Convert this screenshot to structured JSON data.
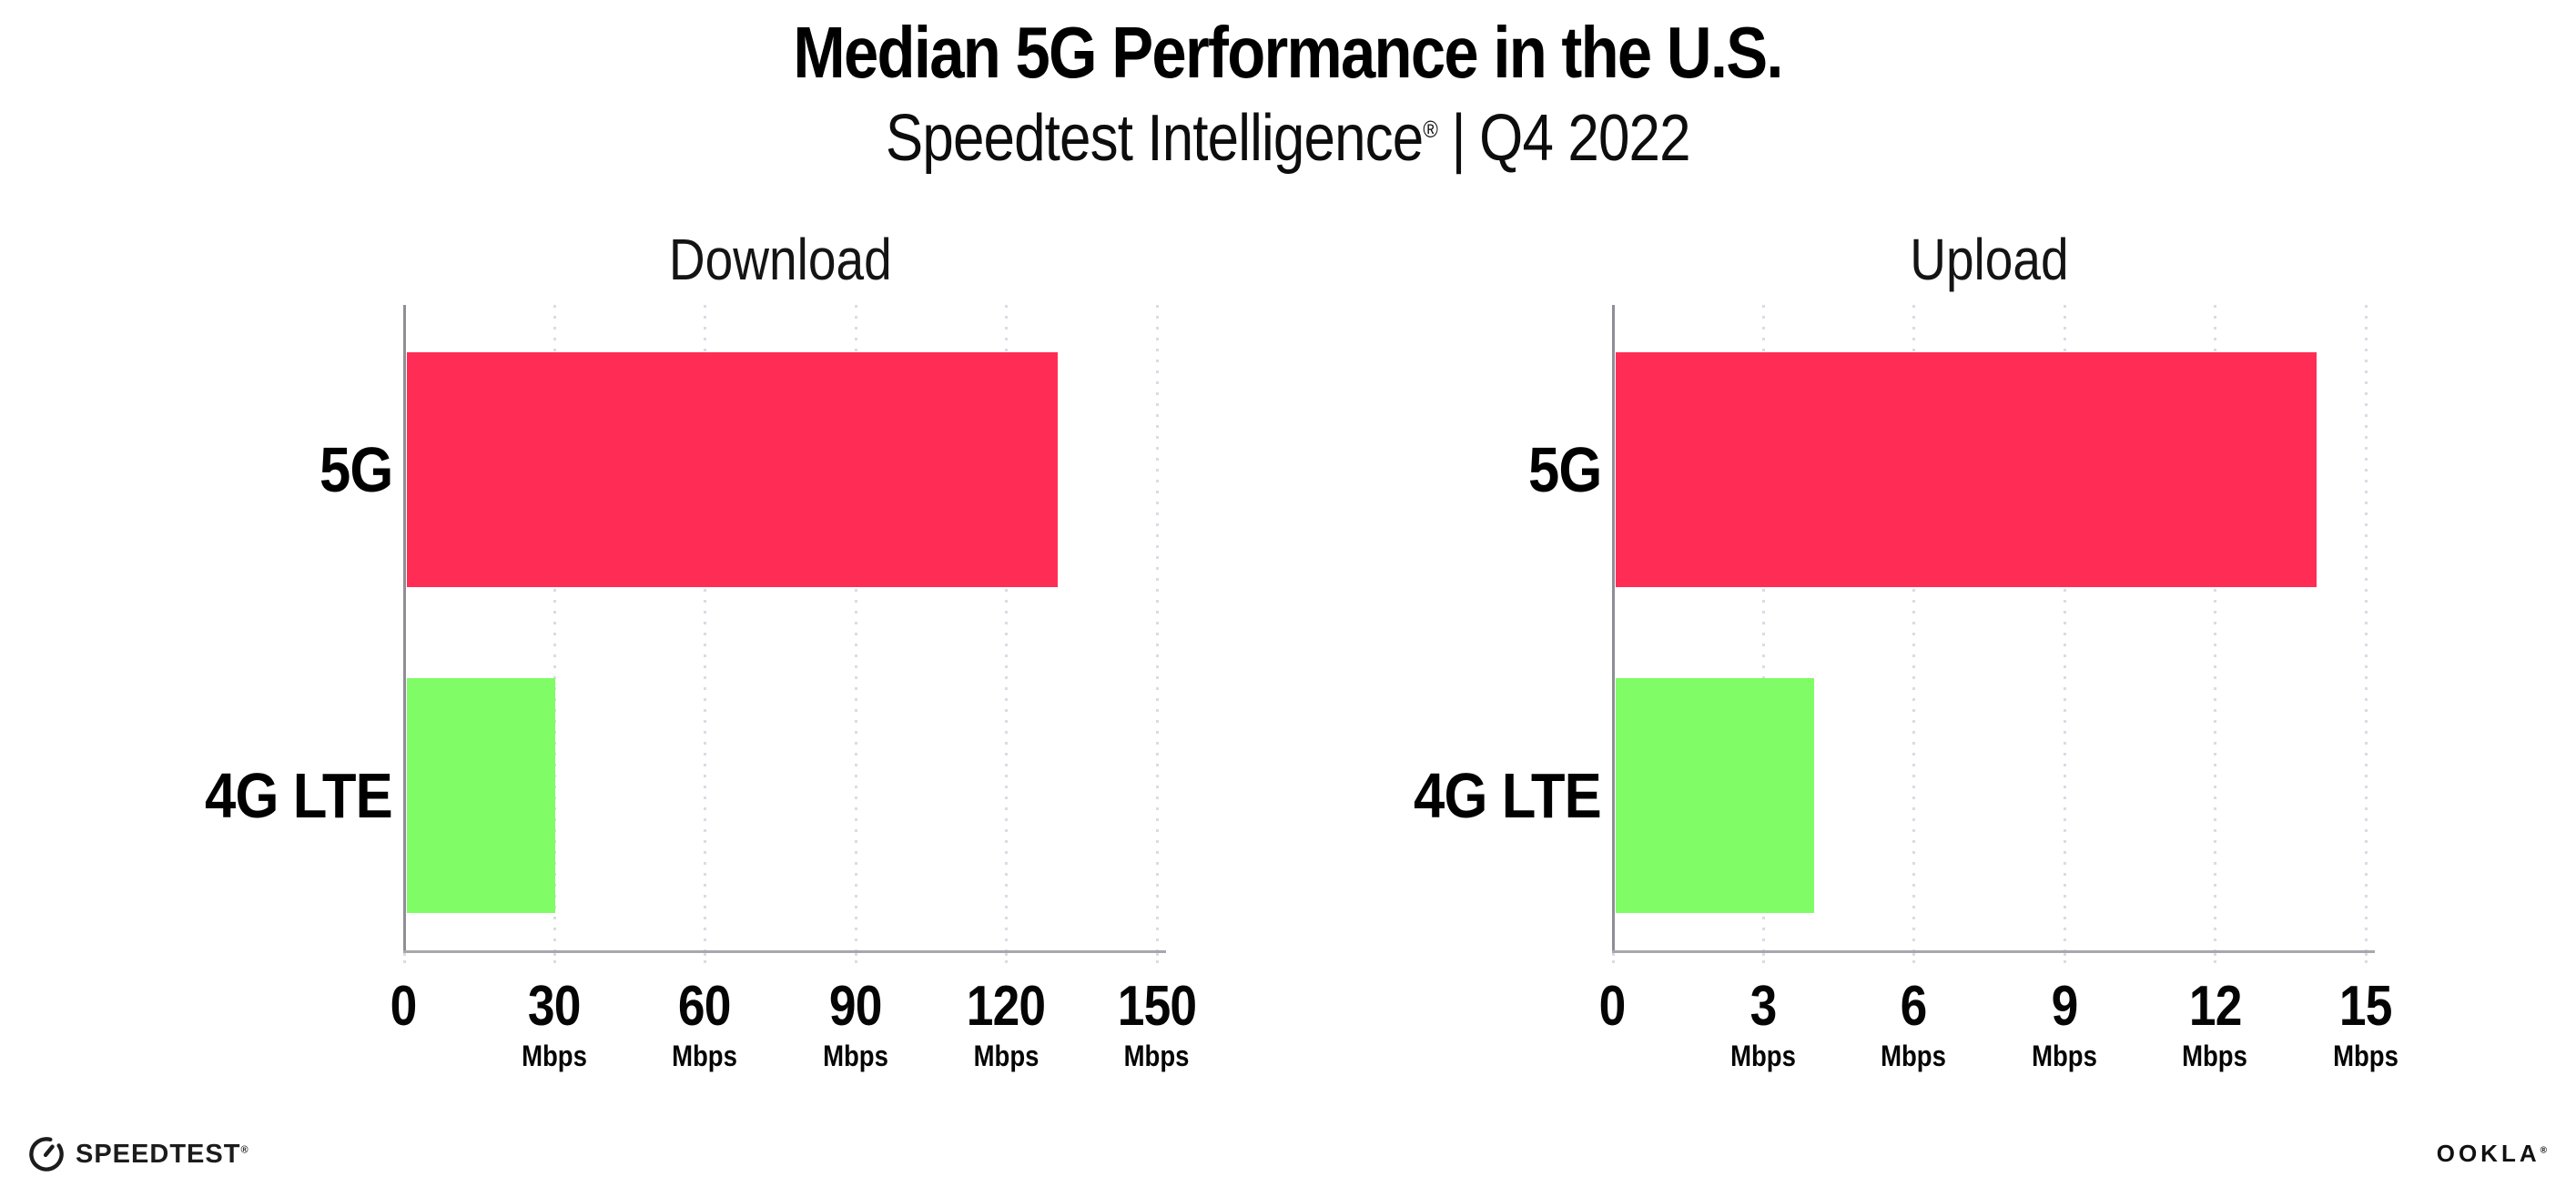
{
  "header": {
    "title": "Median 5G Performance in the U.S.",
    "subtitle_brand": "Speedtest Intelligence",
    "subtitle_reg": "®",
    "subtitle_separator": "|",
    "subtitle_period": "Q4 2022"
  },
  "footer": {
    "speedtest_wordmark": "SPEEDTEST",
    "speedtest_reg": "®",
    "speedtest_icon": "speedometer-gauge-icon",
    "ookla_wordmark": "OOKLA",
    "ookla_reg": "®"
  },
  "colors": {
    "bar_5g": "#FF2D55",
    "bar_4g_lte": "#80FC66",
    "gridline": "#DBDBE6",
    "axis_y": "#8E8E96",
    "axis_x": "#A8A8AC"
  },
  "chart_data": [
    {
      "type": "bar",
      "orientation": "horizontal",
      "title": "Download",
      "categories": [
        "5G",
        "4G LTE"
      ],
      "values": [
        130,
        30
      ],
      "unit": "Mbps",
      "xlabel": "",
      "xlim": [
        0,
        150
      ],
      "xticks": [
        0,
        30,
        60,
        90,
        120,
        150
      ],
      "grid": "vertical-dotted",
      "legend": "none",
      "bar_colors": [
        "#FF2D55",
        "#80FC66"
      ]
    },
    {
      "type": "bar",
      "orientation": "horizontal",
      "title": "Upload",
      "categories": [
        "5G",
        "4G LTE"
      ],
      "values": [
        14,
        4
      ],
      "unit": "Mbps",
      "xlabel": "",
      "xlim": [
        0,
        15
      ],
      "xticks": [
        0,
        3,
        6,
        9,
        12,
        15
      ],
      "grid": "vertical-dotted",
      "legend": "none",
      "bar_colors": [
        "#FF2D55",
        "#80FC66"
      ]
    }
  ]
}
